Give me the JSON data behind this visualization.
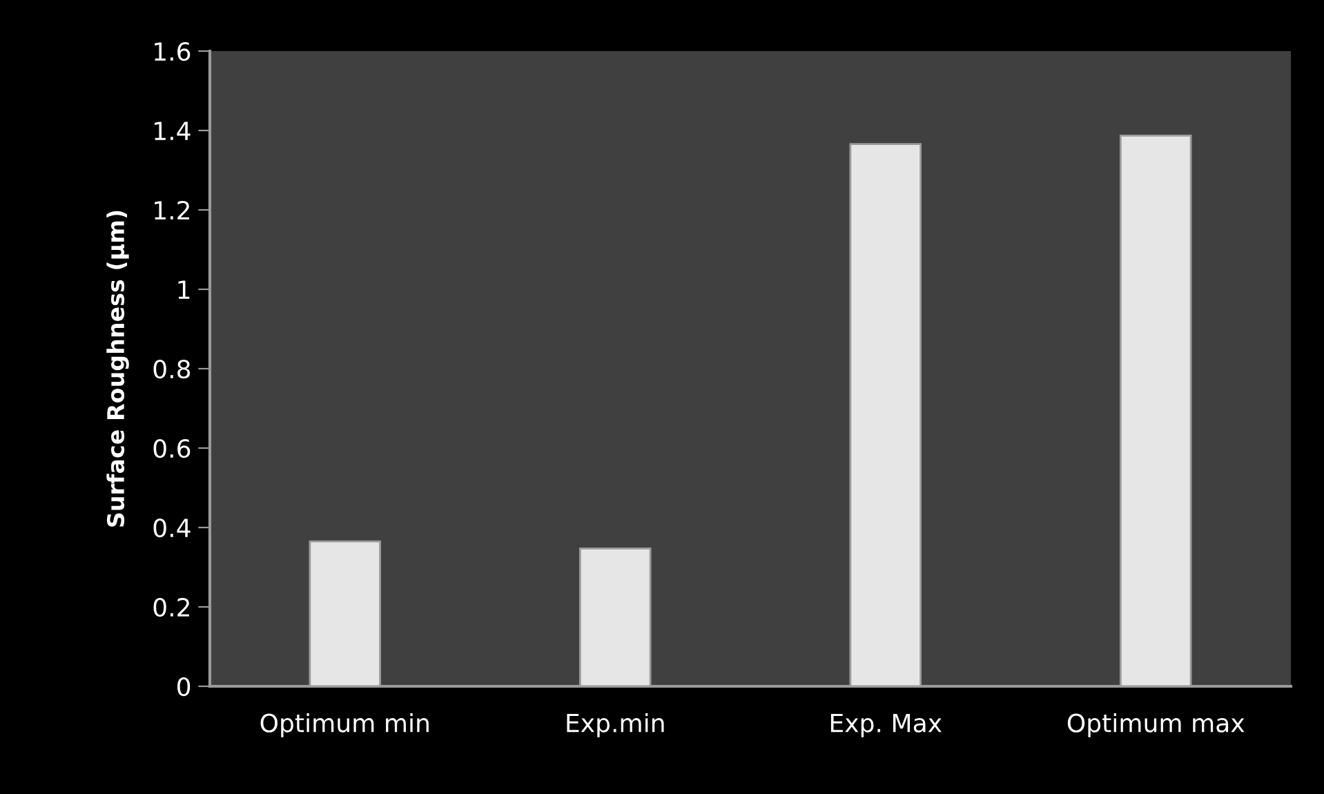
{
  "chart_data": {
    "type": "bar",
    "ylabel": "Surface Roughness (µm)",
    "categories": [
      "Optimum min",
      "Exp.min",
      "Exp. Max",
      "Optimum max"
    ],
    "values": [
      0.365,
      0.347,
      1.366,
      1.387
    ],
    "color": "#e6e6e6",
    "ylim": [
      0,
      1.6
    ],
    "yticks": [
      0,
      0.2,
      0.4,
      0.6,
      0.8,
      1,
      1.2,
      1.4,
      1.6
    ],
    "grid": false,
    "legend": false
  }
}
